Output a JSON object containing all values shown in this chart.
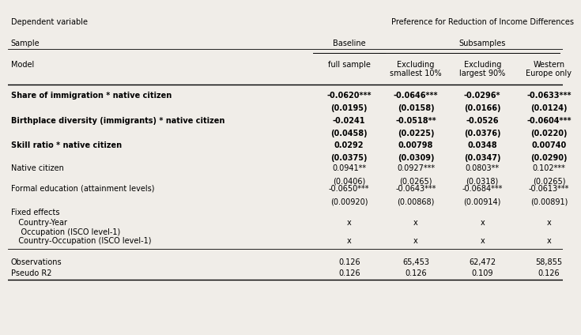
{
  "title_left": "Dependent variable",
  "title_right": "Preference for Reduction of Income Differences",
  "sample_label": "Sample",
  "model_label": "Model",
  "col_headers_level2": [
    "full sample",
    "Excluding\nsmallest 10%",
    "Excluding\nlargest 90%",
    "Western\nEurope only"
  ],
  "rows": [
    {
      "label": "Share of immigration * native citizen",
      "bold": true,
      "values": [
        "-0.0620***",
        "-0.0646***",
        "-0.0296*",
        "-0.0633***"
      ],
      "se": [
        "(0.0195)",
        "(0.0158)",
        "(0.0166)",
        "(0.0124)"
      ],
      "bold_values": true
    },
    {
      "label": "Birthplace diversity (immigrants) * native citizen",
      "bold": true,
      "values": [
        "-0.0241",
        "-0.0518**",
        "-0.0526",
        "-0.0604***"
      ],
      "se": [
        "(0.0458)",
        "(0.0225)",
        "(0.0376)",
        "(0.0220)"
      ],
      "bold_values": true
    },
    {
      "label": "Skill ratio * native citizen",
      "bold": true,
      "values": [
        "0.0292",
        "0.00798",
        "0.0348",
        "0.00740"
      ],
      "se": [
        "(0.0375)",
        "(0.0309)",
        "(0.0347)",
        "(0.0290)"
      ],
      "bold_values": true
    },
    {
      "label": "Native citizen",
      "bold": false,
      "values": [
        "0.0941**",
        "0.0927***",
        "0.0803**",
        "0.102***"
      ],
      "se": [
        "(0.0406)",
        "(0.0265)",
        "(0.0318)",
        "(0.0265)"
      ],
      "bold_values": false
    },
    {
      "label": "Formal education (attainment levels)",
      "bold": false,
      "values": [
        "-0.0650***",
        "-0.0643***",
        "-0.0684***",
        "-0.0613***"
      ],
      "se": [
        "(0.00920)",
        "(0.00868)",
        "(0.00914)",
        "(0.00891)"
      ],
      "bold_values": false
    }
  ],
  "fixed_effects_header": "Fixed effects",
  "fixed_effects_rows": [
    {
      "label": "   Country-Year",
      "values": [
        "x",
        "x",
        "x",
        "x"
      ]
    },
    {
      "label": "    Occupation (ISCO level-1)",
      "values": [
        "",
        "",
        "",
        ""
      ]
    },
    {
      "label": "   Country-Occupation (ISCO level-1)",
      "values": [
        "x",
        "x",
        "x",
        "x"
      ]
    }
  ],
  "bottom_rows": [
    {
      "label": "Observations",
      "values": [
        "0.126",
        "65,453",
        "62,472",
        "58,855"
      ]
    },
    {
      "label": "Pseudo R2",
      "values": [
        "0.126",
        "0.126",
        "0.109",
        "0.126"
      ]
    }
  ],
  "bg_color": "#f0ede8",
  "font_size": 7.0
}
